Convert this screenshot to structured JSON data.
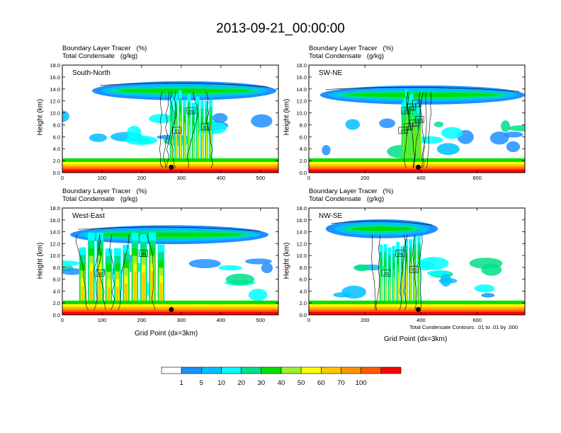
{
  "figure": {
    "title": "2013-09-21_00:00:00",
    "contour_note": "Total Condensate Contours: .01 to .01 by .000",
    "x_axis_label": "Grid Point (dx=3km)"
  },
  "colorbar": {
    "levels": [
      "1",
      "5",
      "10",
      "20",
      "30",
      "40",
      "50",
      "60",
      "70",
      "100"
    ],
    "colors": [
      "#ffffff",
      "#1e90ff",
      "#00bfff",
      "#00ffff",
      "#00e08a",
      "#00e000",
      "#a0ee30",
      "#ffff00",
      "#ffc800",
      "#ff9600",
      "#ff5a00",
      "#ff0000"
    ]
  },
  "chart_data": [
    {
      "type": "heatmap",
      "panel": "South-North",
      "header_line1": "Boundary Layer Tracer   (%)",
      "header_line2": "Total Condensate   (g/kg)",
      "ylabel": "Height (km)",
      "xlabel": "",
      "xlim": [
        0,
        545
      ],
      "ylim": [
        0,
        18
      ],
      "xticks": [
        0,
        100,
        200,
        300,
        400,
        500
      ],
      "yticks": [
        "0.0",
        "2.0",
        "4.0",
        "6.0",
        "8.0",
        "10.0",
        "12.0",
        "14.0",
        "16.0",
        "18.0"
      ],
      "contour_labels": [
        ".01",
        ".01",
        ".01"
      ],
      "marker_x": 275,
      "anvil": [
        75,
        540,
        13.7
      ],
      "core": [
        270,
        380
      ],
      "grid": false
    },
    {
      "type": "heatmap",
      "panel": "SW-NE",
      "header_line1": "Boundary Layer Tracer   (%)",
      "header_line2": "Total Condensate   (g/kg)",
      "ylabel": "Height (km)",
      "xlabel": "",
      "xlim": [
        0,
        770
      ],
      "ylim": [
        0,
        18
      ],
      "xticks": [
        0,
        200,
        400,
        600
      ],
      "yticks": [
        "0.0",
        "2.0",
        "4.0",
        "6.0",
        "8.0",
        "10.0",
        "12.0",
        "14.0",
        "16.0",
        "18.0"
      ],
      "contour_labels": [
        ".01",
        ".01",
        ".01",
        ".01",
        ".01",
        ".01",
        ".01"
      ],
      "marker_x": 390,
      "anvil": [
        40,
        770,
        13.0
      ],
      "core": [
        330,
        400
      ],
      "grid": false
    },
    {
      "type": "heatmap",
      "panel": "West-East",
      "header_line1": "Boundary Layer Tracer   (%)",
      "header_line2": "Total Condensate   (g/kg)",
      "ylabel": "Height (km)",
      "xlabel": "Grid Point (dx=3km)",
      "xlim": [
        0,
        545
      ],
      "ylim": [
        0,
        18
      ],
      "xticks": [
        0,
        100,
        200,
        300,
        400,
        500
      ],
      "yticks": [
        "0.0",
        "2.0",
        "4.0",
        "6.0",
        "8.0",
        "10.0",
        "12.0",
        "14.0",
        "16.0",
        "18.0"
      ],
      "contour_labels": [
        ".01",
        ".01"
      ],
      "marker_x": 275,
      "anvil": [
        20,
        520,
        13.5
      ],
      "core": [
        40,
        260
      ],
      "grid": false
    },
    {
      "type": "heatmap",
      "panel": "NW-SE",
      "header_line1": "Boundary Layer Tracer   (%)",
      "header_line2": "Total Condensate   (g/kg)",
      "ylabel": "Height (km)",
      "xlabel": "Grid Point (dx=3km)",
      "xlim": [
        0,
        770
      ],
      "ylim": [
        0,
        18
      ],
      "xticks": [
        0,
        200,
        400,
        600
      ],
      "yticks": [
        "0.0",
        "2.0",
        "4.0",
        "6.0",
        "8.0",
        "10.0",
        "12.0",
        "14.0",
        "16.0",
        "18.0"
      ],
      "contour_labels": [
        ".01",
        ".01",
        ".01"
      ],
      "marker_x": 390,
      "anvil": [
        60,
        460,
        14.5
      ],
      "core": [
        250,
        400
      ],
      "grid": false
    }
  ]
}
